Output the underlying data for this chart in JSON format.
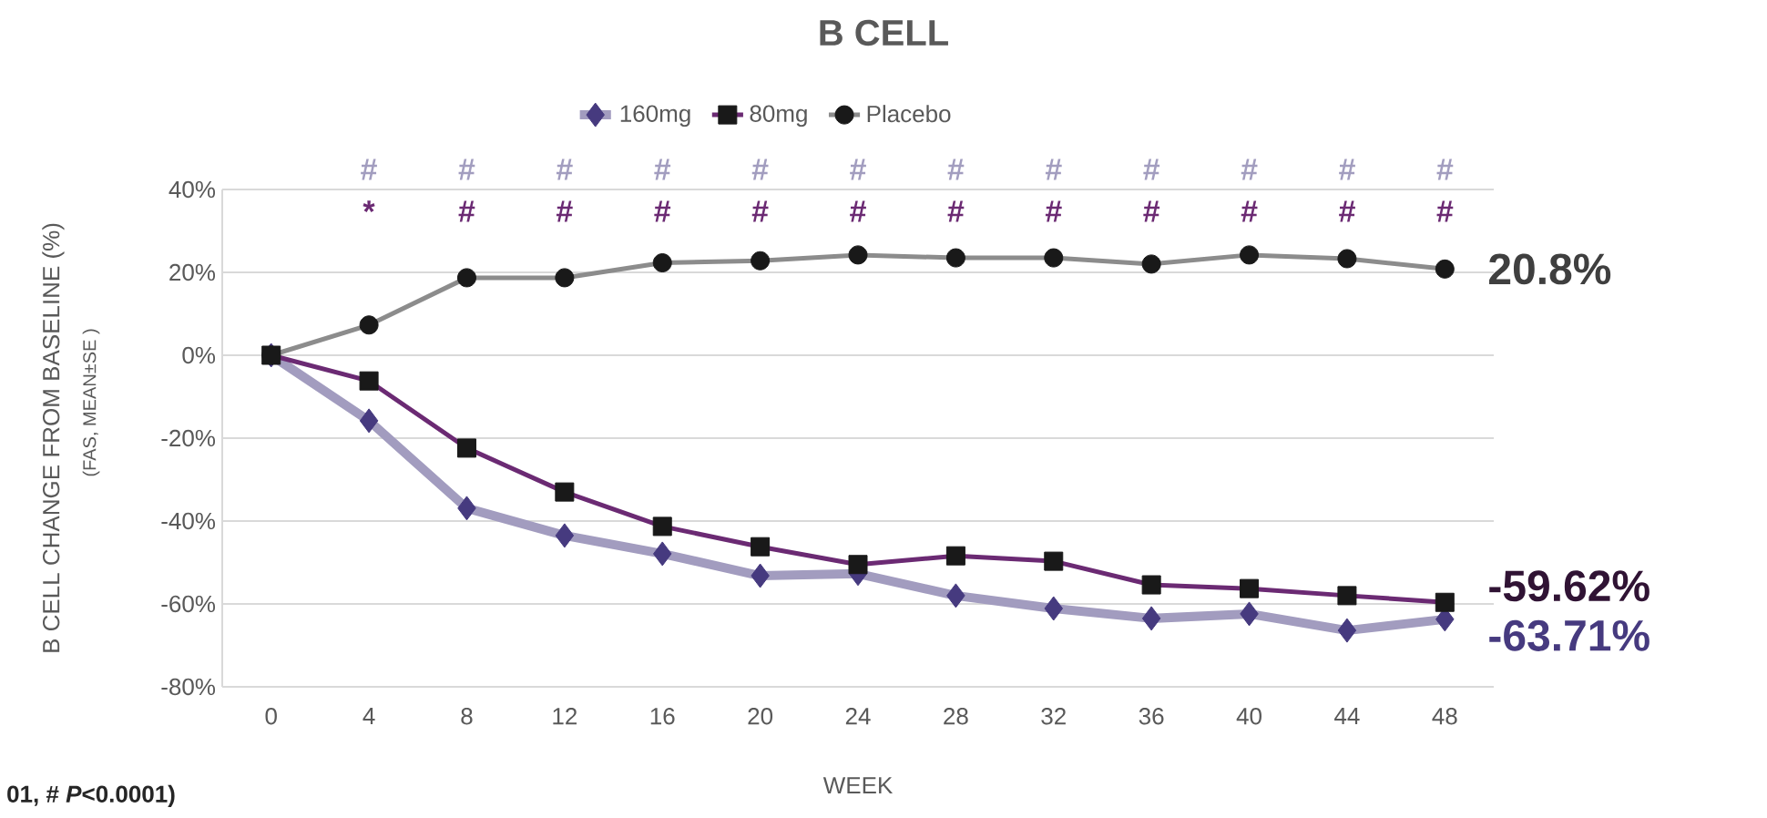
{
  "chart_data": {
    "type": "line",
    "title": "B CELL",
    "xlabel": "WEEK",
    "ylabel": "B CELL CHANGE FROM BASELINE (%)",
    "categories": [
      "0",
      "4",
      "8",
      "12",
      "16",
      "20",
      "24",
      "28",
      "32",
      "36",
      "40",
      "44",
      "48"
    ],
    "series": [
      {
        "name": "160mg",
        "color": "#463a7f",
        "marker": "diamond",
        "values": [
          0,
          -15.8,
          -36.9,
          -43.5,
          -47.9,
          -53.2,
          -52.7,
          -58,
          -61.1,
          -63.5,
          -62.4,
          -66.4,
          -63.71
        ],
        "value_labels": [
          null,
          null,
          null,
          null,
          null,
          null,
          null,
          null,
          null,
          null,
          null,
          null,
          "-63.71%"
        ]
      },
      {
        "name": "80mg",
        "color": "#6b2a73",
        "marker": "square",
        "values": [
          0,
          -6.2,
          -22.4,
          -33,
          -41.3,
          -46.2,
          -50.5,
          -48.4,
          -49.7,
          -55.4,
          -56.3,
          -58,
          -59.62
        ],
        "value_labels": [
          null,
          null,
          null,
          null,
          null,
          null,
          null,
          null,
          null,
          null,
          null,
          null,
          "-59.62%"
        ]
      },
      {
        "name": "Placebo",
        "color": "#8c8c8c",
        "marker": "circle",
        "values": [
          0,
          7.3,
          18.7,
          18.7,
          22.3,
          22.8,
          24.2,
          23.5,
          23.5,
          22,
          24.2,
          23.3,
          20.8
        ],
        "value_labels": [
          null,
          null,
          null,
          null,
          null,
          null,
          null,
          null,
          null,
          null,
          null,
          null,
          "20.8%"
        ]
      }
    ],
    "ylim": [
      -80,
      40
    ],
    "yticks": [
      {
        "value": -80,
        "label": "-80%"
      },
      {
        "value": -60,
        "label": "-60%"
      },
      {
        "value": -40,
        "label": "-40%"
      },
      {
        "value": -20,
        "label": "-20%"
      },
      {
        "value": 0,
        "label": "0%"
      },
      {
        "value": 20,
        "label": "20%"
      },
      {
        "value": 40,
        "label": "40%"
      }
    ],
    "grid": "y",
    "legend": "top",
    "annotations": [
      "(FAS, MEAN±SE )",
      "01, # *P*<0.0001)",
      "#",
      "#",
      "#",
      "#",
      "#",
      "#",
      "#",
      "#",
      "#",
      "#",
      "#",
      "#",
      "*",
      "#",
      "#",
      "#",
      "#",
      "#",
      "#",
      "#",
      "#",
      "#",
      "#",
      "#"
    ]
  }
}
